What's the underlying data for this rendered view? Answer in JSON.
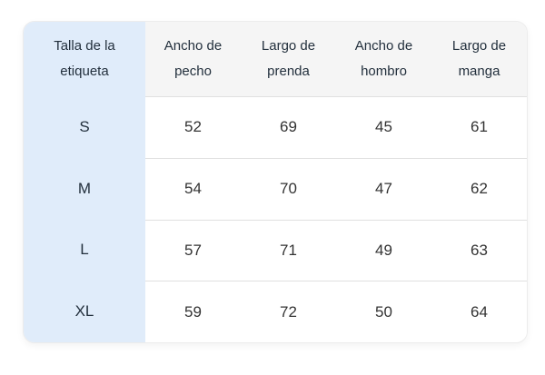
{
  "size_chart": {
    "corner_header": "Talla de la etiqueta",
    "columns": [
      "Ancho de pecho",
      "Largo de prenda",
      "Ancho de hombro",
      "Largo de manga"
    ],
    "rows": [
      {
        "size": "S",
        "values": [
          52,
          69,
          45,
          61
        ]
      },
      {
        "size": "M",
        "values": [
          54,
          70,
          47,
          62
        ]
      },
      {
        "size": "L",
        "values": [
          57,
          71,
          49,
          63
        ]
      },
      {
        "size": "XL",
        "values": [
          59,
          72,
          50,
          64
        ]
      }
    ]
  },
  "chart_data": {
    "type": "table",
    "title": "",
    "corner_header": "Talla de la etiqueta",
    "columns": [
      "Ancho de pecho",
      "Largo de prenda",
      "Ancho de hombro",
      "Largo de manga"
    ],
    "row_labels": [
      "S",
      "M",
      "L",
      "XL"
    ],
    "values": [
      [
        52,
        69,
        45,
        61
      ],
      [
        54,
        70,
        47,
        62
      ],
      [
        57,
        71,
        49,
        63
      ],
      [
        59,
        72,
        50,
        64
      ]
    ]
  },
  "colors": {
    "size_column_bg": "#e0ecfa",
    "header_bg": "#f5f5f5",
    "data_bg": "#ffffff",
    "divider": "#e0e0e0",
    "outer_border": "#ececec",
    "header_text": "#23303d",
    "value_text": "#333333"
  }
}
